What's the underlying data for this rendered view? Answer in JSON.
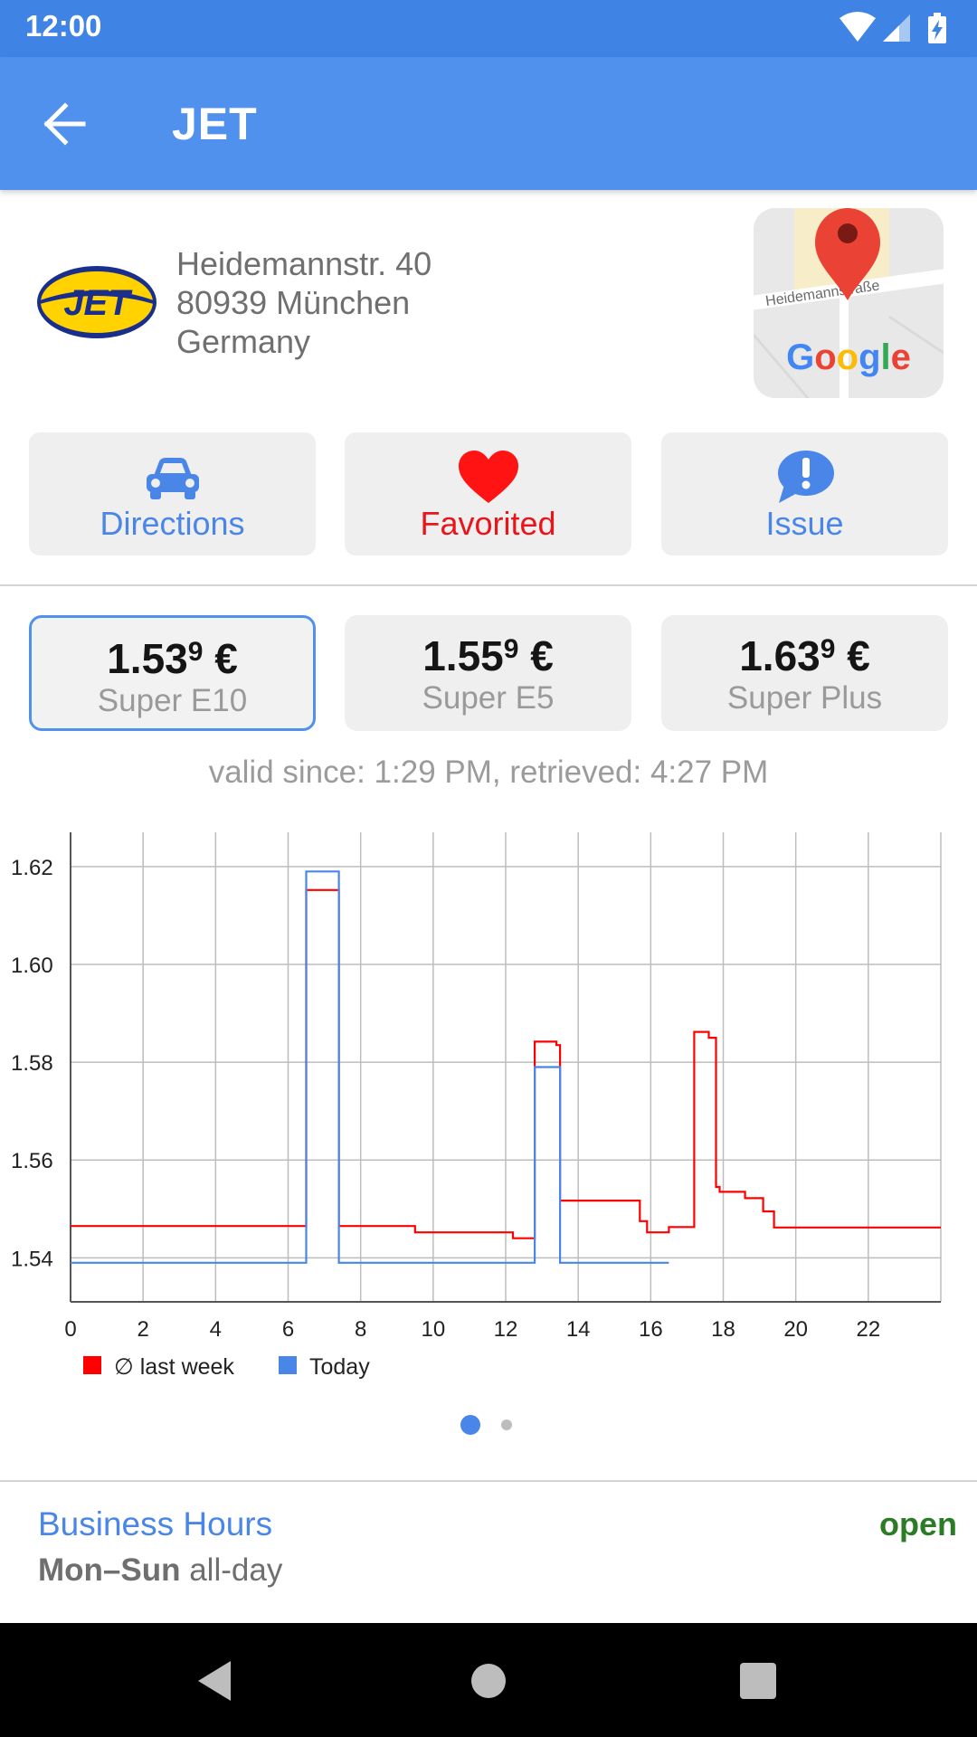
{
  "status_bar": {
    "time": "12:00"
  },
  "app_bar": {
    "title": "JET"
  },
  "station": {
    "logo_text": "JET",
    "address_lines": [
      "Heidemannstr. 40",
      "80939 München",
      "Germany"
    ],
    "map": {
      "street_label": "Heidemannstraße",
      "brand": "Google"
    }
  },
  "actions": [
    {
      "label": "Directions",
      "icon": "car-icon"
    },
    {
      "label": "Favorited",
      "icon": "heart-icon"
    },
    {
      "label": "Issue",
      "icon": "exclamation-bubble-icon"
    }
  ],
  "prices": [
    {
      "main": "1.53",
      "tenth": "9",
      "currency": " €",
      "fuel": "Super E10",
      "selected": true
    },
    {
      "main": "1.55",
      "tenth": "9",
      "currency": " €",
      "fuel": "Super E5",
      "selected": false
    },
    {
      "main": "1.63",
      "tenth": "9",
      "currency": " €",
      "fuel": "Super Plus",
      "selected": false
    }
  ],
  "valid_text": "valid since: 1:29 PM, retrieved: 4:27 PM",
  "chart_data": {
    "type": "line",
    "xlim": [
      0,
      24
    ],
    "ylim": [
      1.531,
      1.627
    ],
    "x_ticks": [
      0,
      2,
      4,
      6,
      8,
      10,
      12,
      14,
      16,
      18,
      20,
      22
    ],
    "y_ticks": [
      1.54,
      1.56,
      1.58,
      1.6,
      1.62
    ],
    "y_tick_labels": [
      "1.54",
      "1.56",
      "1.58",
      "1.60",
      "1.62"
    ],
    "grid": true,
    "legend_placement": "bottom-left",
    "step": true,
    "series": [
      {
        "name": "∅ last week",
        "color": "#ff0000",
        "points": [
          [
            0,
            1.5465
          ],
          [
            6.5,
            1.5465
          ],
          [
            6.5,
            1.6152
          ],
          [
            7.4,
            1.6152
          ],
          [
            7.4,
            1.5465
          ],
          [
            9.5,
            1.5465
          ],
          [
            9.5,
            1.5452
          ],
          [
            12.2,
            1.5452
          ],
          [
            12.2,
            1.544
          ],
          [
            12.8,
            1.544
          ],
          [
            12.8,
            1.5842
          ],
          [
            13.4,
            1.5842
          ],
          [
            13.4,
            1.5835
          ],
          [
            13.5,
            1.5835
          ],
          [
            13.5,
            1.5517
          ],
          [
            15.7,
            1.5517
          ],
          [
            15.7,
            1.5475
          ],
          [
            15.9,
            1.5475
          ],
          [
            15.9,
            1.5452
          ],
          [
            16.5,
            1.5452
          ],
          [
            16.5,
            1.5463
          ],
          [
            17.2,
            1.5463
          ],
          [
            17.2,
            1.5862
          ],
          [
            17.6,
            1.5862
          ],
          [
            17.6,
            1.585
          ],
          [
            17.8,
            1.585
          ],
          [
            17.8,
            1.5545
          ],
          [
            17.9,
            1.5545
          ],
          [
            17.9,
            1.5535
          ],
          [
            18.6,
            1.5535
          ],
          [
            18.6,
            1.5522
          ],
          [
            19.1,
            1.5522
          ],
          [
            19.1,
            1.5495
          ],
          [
            19.4,
            1.5495
          ],
          [
            19.4,
            1.5462
          ],
          [
            24,
            1.5462
          ]
        ]
      },
      {
        "name": "Today",
        "color": "#4a86e8",
        "points": [
          [
            0,
            1.539
          ],
          [
            6.5,
            1.539
          ],
          [
            6.5,
            1.619
          ],
          [
            7.4,
            1.619
          ],
          [
            7.4,
            1.539
          ],
          [
            12.8,
            1.539
          ],
          [
            12.8,
            1.579
          ],
          [
            13.5,
            1.579
          ],
          [
            13.5,
            1.539
          ],
          [
            16.5,
            1.539
          ]
        ]
      }
    ]
  },
  "pager": {
    "pages": 2,
    "active": 0
  },
  "business_hours": {
    "title": "Business Hours",
    "status": "open",
    "days": "Mon–Sun",
    "hours": "all-day"
  },
  "colors": {
    "primary": "#5191ee",
    "status_bar": "#3f84e5",
    "accent_red": "#e8151b",
    "open_green": "#2b7c25"
  }
}
